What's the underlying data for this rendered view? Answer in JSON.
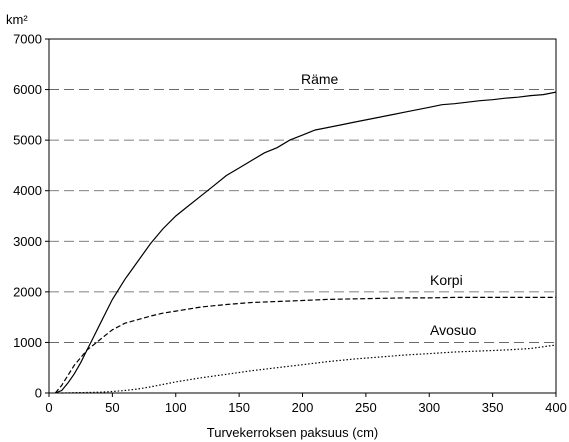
{
  "chart_data": {
    "type": "line",
    "title": "",
    "xlabel": "Turvekerroksen paksuus (cm)",
    "ylabel": "km²",
    "xlim": [
      0,
      400
    ],
    "ylim": [
      0,
      7000
    ],
    "xticks": [
      0,
      50,
      100,
      150,
      200,
      250,
      300,
      350,
      400
    ],
    "yticks": [
      0,
      1000,
      2000,
      3000,
      4000,
      5000,
      6000,
      7000
    ],
    "grid": "horizontal-dashed",
    "series": [
      {
        "name": "Räme",
        "style": "solid",
        "x": [
          5,
          10,
          15,
          20,
          25,
          30,
          35,
          40,
          45,
          50,
          55,
          60,
          70,
          80,
          90,
          100,
          110,
          120,
          130,
          140,
          150,
          160,
          170,
          180,
          190,
          200,
          210,
          220,
          230,
          240,
          250,
          260,
          270,
          280,
          290,
          300,
          310,
          320,
          330,
          340,
          350,
          360,
          370,
          380,
          390,
          400
        ],
        "values": [
          0,
          50,
          200,
          380,
          600,
          850,
          1100,
          1350,
          1600,
          1850,
          2050,
          2250,
          2600,
          2950,
          3250,
          3500,
          3700,
          3900,
          4100,
          4300,
          4450,
          4600,
          4750,
          4850,
          5000,
          5100,
          5200,
          5250,
          5300,
          5350,
          5400,
          5450,
          5500,
          5550,
          5600,
          5650,
          5700,
          5720,
          5750,
          5780,
          5800,
          5830,
          5850,
          5880,
          5900,
          5950
        ]
      },
      {
        "name": "Korpi",
        "style": "dashed",
        "x": [
          5,
          10,
          15,
          20,
          25,
          30,
          35,
          40,
          45,
          50,
          60,
          70,
          80,
          90,
          100,
          120,
          140,
          160,
          180,
          200,
          220,
          240,
          260,
          280,
          300,
          320,
          340,
          360,
          380,
          400
        ],
        "values": [
          0,
          150,
          350,
          550,
          700,
          850,
          950,
          1050,
          1150,
          1250,
          1380,
          1450,
          1520,
          1580,
          1620,
          1700,
          1750,
          1790,
          1810,
          1830,
          1850,
          1860,
          1870,
          1880,
          1880,
          1890,
          1890,
          1890,
          1890,
          1890
        ]
      },
      {
        "name": "Avosuo",
        "style": "dotted",
        "x": [
          10,
          20,
          30,
          40,
          50,
          60,
          70,
          80,
          90,
          100,
          120,
          140,
          160,
          180,
          200,
          220,
          240,
          260,
          280,
          300,
          320,
          340,
          360,
          380,
          400
        ],
        "values": [
          0,
          5,
          10,
          15,
          30,
          50,
          80,
          120,
          170,
          220,
          300,
          370,
          440,
          500,
          560,
          620,
          670,
          710,
          750,
          780,
          810,
          830,
          850,
          880,
          950
        ]
      }
    ]
  }
}
